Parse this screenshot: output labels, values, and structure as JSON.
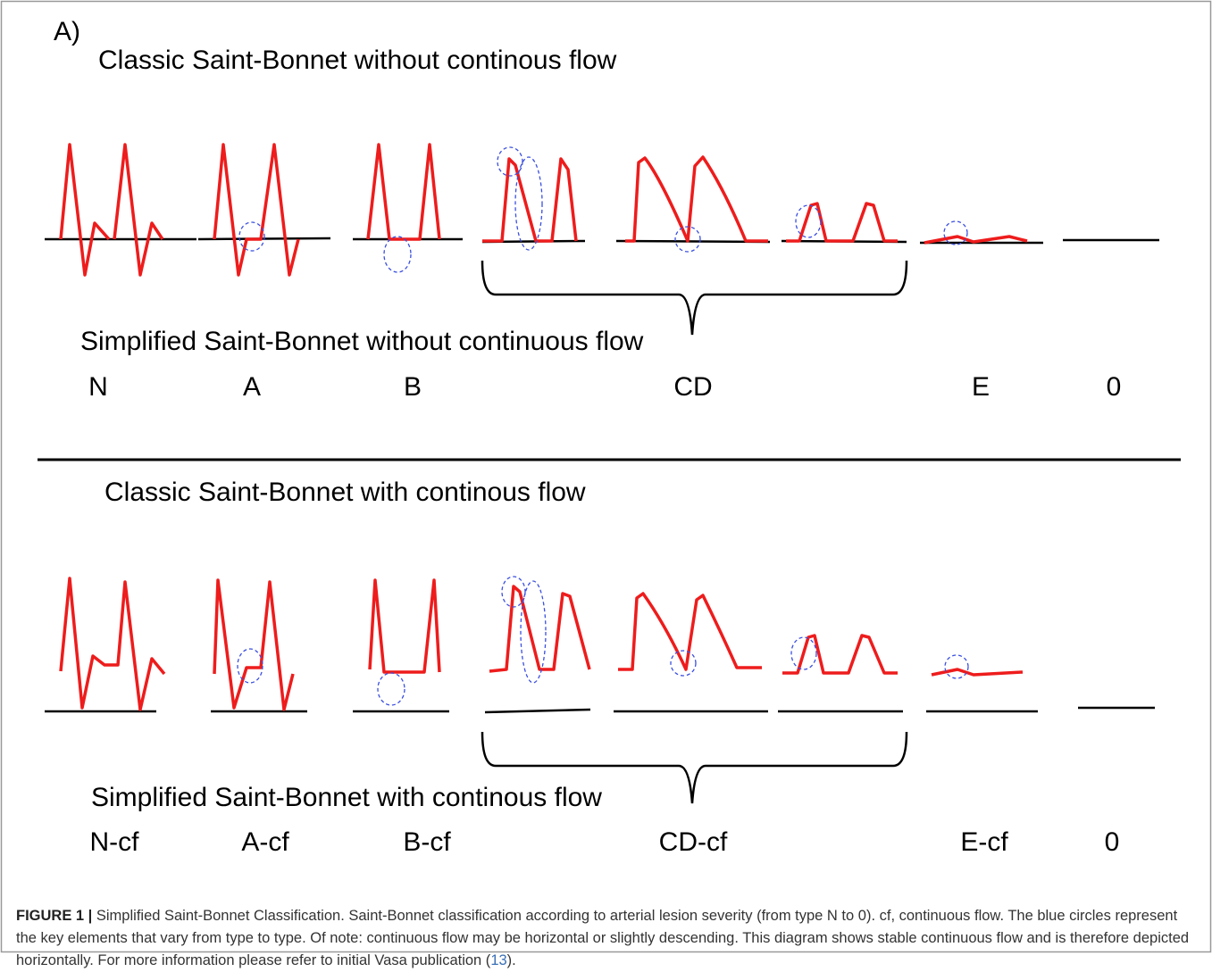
{
  "panel_label": "A)",
  "sections": [
    {
      "title": "Classic Saint-Bonnet without continous flow",
      "subtitle": "Simplified Saint-Bonnet without continuous flow",
      "types": [
        "N",
        "A",
        "B",
        "CD",
        "E",
        "0"
      ]
    },
    {
      "title": "Classic Saint-Bonnet with continous flow",
      "subtitle": "Simplified Saint-Bonnet with continous flow",
      "types": [
        "N-cf",
        "A-cf",
        "B-cf",
        "CD-cf",
        "E-cf",
        "0"
      ]
    }
  ],
  "caption": {
    "label": "FIGURE 1 |",
    "text": "Simplified Saint-Bonnet Classification. Saint-Bonnet classification according to arterial lesion severity (from type N to 0). cf, continuous flow. The blue circles represent the key elements that vary from type to type. Of note: continuous flow may be horizontal or slightly descending. This diagram shows stable continuous flow and is therefore depicted horizontally. For more information please refer to initial Vasa publication (",
    "ref": "13",
    "end": ")."
  }
}
